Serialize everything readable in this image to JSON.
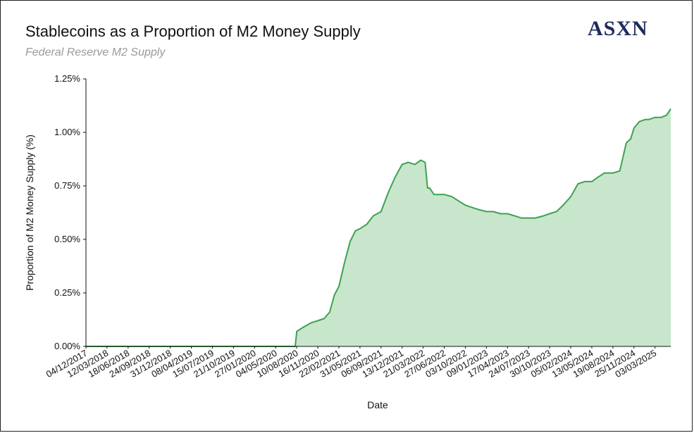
{
  "header": {
    "title": "Stablecoins as a Proportion of M2 Money Supply",
    "subtitle": "Federal Reserve M2 Supply",
    "logo": "ASXN"
  },
  "colors": {
    "line": "#3ea150",
    "fill": "#c8e6cb",
    "axis": "#111111"
  },
  "chart_data": {
    "type": "area",
    "title": "Stablecoins as a Proportion of M2 Money Supply",
    "subtitle": "Federal Reserve M2 Supply",
    "xlabel": "Date",
    "ylabel": "Proportion of M2 Money Supply (%)",
    "ylim": [
      0,
      1.25
    ],
    "y_ticks": [
      0,
      0.25,
      0.5,
      0.75,
      1.0,
      1.25
    ],
    "y_tick_labels": [
      "0.00%",
      "0.25%",
      "0.50%",
      "0.75%",
      "1.00%",
      "1.25%"
    ],
    "x_range": [
      "2017-12-04",
      "2025-05-15"
    ],
    "x_tick_labels": [
      "04/12/2017",
      "12/03/2018",
      "18/06/2018",
      "24/09/2018",
      "31/12/2018",
      "08/04/2019",
      "15/07/2019",
      "21/10/2019",
      "27/01/2020",
      "04/05/2020",
      "10/08/2020",
      "16/11/2020",
      "22/02/2021",
      "31/05/2021",
      "06/09/2021",
      "13/12/2021",
      "21/03/2022",
      "27/06/2022",
      "03/10/2022",
      "09/01/2023",
      "17/04/2023",
      "24/07/2023",
      "30/10/2023",
      "05/02/2024",
      "13/05/2024",
      "19/08/2024",
      "25/11/2024",
      "03/03/2025"
    ],
    "grid": false,
    "legend": "none",
    "series": [
      {
        "x": [
          "2017-12-04",
          "2018-06-18",
          "2018-12-31",
          "2019-07-15",
          "2020-01-27",
          "2020-06-01",
          "2020-08-03",
          "2020-08-10",
          "2020-09-10",
          "2020-10-15",
          "2020-11-16",
          "2020-12-15",
          "2021-01-10",
          "2021-02-01",
          "2021-02-22",
          "2021-03-20",
          "2021-04-15",
          "2021-05-10",
          "2021-05-31",
          "2021-07-01",
          "2021-08-01",
          "2021-09-06",
          "2021-10-10",
          "2021-11-10",
          "2021-12-13",
          "2022-01-10",
          "2022-02-10",
          "2022-03-10",
          "2022-03-30",
          "2022-04-10",
          "2022-04-20",
          "2022-05-10",
          "2022-06-27",
          "2022-08-01",
          "2022-09-01",
          "2022-10-03",
          "2022-11-01",
          "2022-12-01",
          "2023-01-09",
          "2023-02-10",
          "2023-03-15",
          "2023-04-17",
          "2023-05-20",
          "2023-06-20",
          "2023-07-24",
          "2023-08-25",
          "2023-10-01",
          "2023-10-30",
          "2023-12-01",
          "2024-01-01",
          "2024-02-05",
          "2024-03-10",
          "2024-04-10",
          "2024-05-13",
          "2024-06-10",
          "2024-07-10",
          "2024-08-19",
          "2024-09-20",
          "2024-10-20",
          "2024-11-10",
          "2024-11-25",
          "2024-12-20",
          "2025-01-15",
          "2025-02-01",
          "2025-03-03",
          "2025-04-01",
          "2025-04-25",
          "2025-05-15"
        ],
        "values": [
          0.0,
          0.0,
          0.0,
          0.0,
          0.0,
          0.0,
          0.0,
          0.07,
          0.09,
          0.11,
          0.12,
          0.13,
          0.16,
          0.24,
          0.28,
          0.39,
          0.49,
          0.54,
          0.55,
          0.57,
          0.61,
          0.63,
          0.72,
          0.79,
          0.85,
          0.86,
          0.85,
          0.87,
          0.86,
          0.74,
          0.74,
          0.71,
          0.71,
          0.7,
          0.68,
          0.66,
          0.65,
          0.64,
          0.63,
          0.63,
          0.62,
          0.62,
          0.61,
          0.6,
          0.6,
          0.6,
          0.61,
          0.62,
          0.63,
          0.66,
          0.7,
          0.76,
          0.77,
          0.77,
          0.79,
          0.81,
          0.81,
          0.82,
          0.95,
          0.97,
          1.02,
          1.05,
          1.06,
          1.06,
          1.07,
          1.07,
          1.08,
          1.11
        ]
      }
    ]
  }
}
